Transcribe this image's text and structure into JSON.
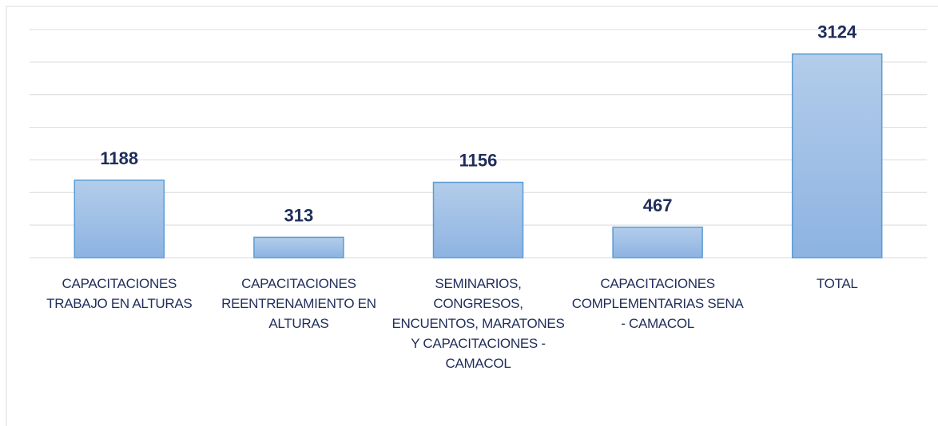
{
  "chart_data": {
    "type": "bar",
    "categories": [
      "CAPACITACIONES TRABAJO EN ALTURAS",
      "CAPACITACIONES REENTRENAMIENTO EN ALTURAS",
      "SEMINARIOS, CONGRESOS, ENCUENTOS, MARATONES Y CAPACITACIONES - CAMACOL",
      "CAPACITACIONES COMPLEMENTARIAS SENA - CAMACOL",
      "TOTAL"
    ],
    "values": [
      1188,
      313,
      1156,
      467,
      3124
    ],
    "color": "#9dbfe6",
    "ylim": [
      0,
      3500
    ],
    "yticks": [
      0,
      500,
      1000,
      1500,
      2000,
      2500,
      3000,
      3500
    ],
    "grid": true
  }
}
